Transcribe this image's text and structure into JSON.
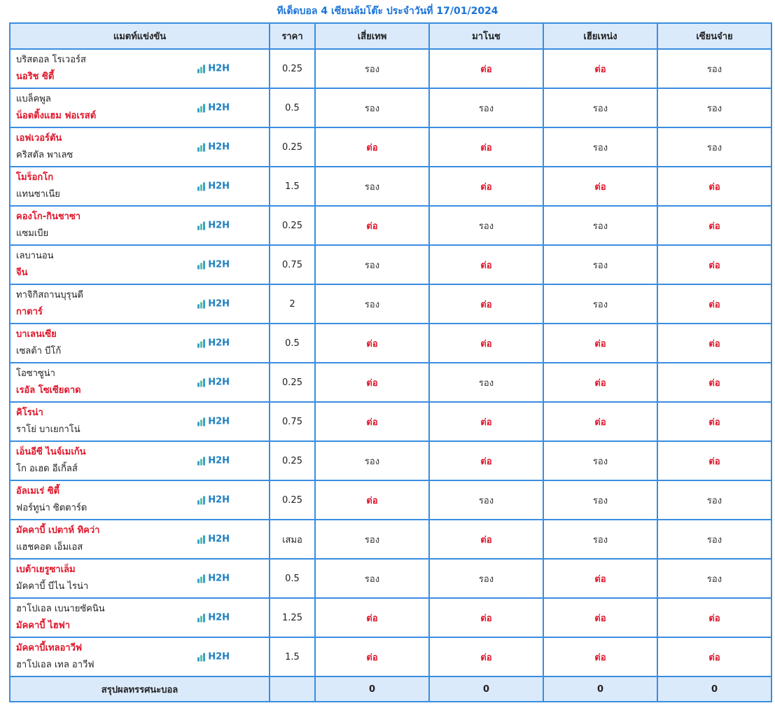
{
  "title": "ทีเด็ดบอล 4 เซียนล้มโต๊ะ ประจำวันที่ 17/01/2024",
  "headers": {
    "match": "แมตท์แข่งขัน",
    "price": "ราคา",
    "experts": [
      "เสี่ยเทพ",
      "มาโนช",
      "เฮียเหน่ง",
      "เซียนจ๋าย"
    ]
  },
  "h2h_label": "H2H",
  "colors": {
    "favorite": "#e0162b",
    "accent": "#1a73d9",
    "border": "#3a8de0",
    "header_bg": "#dbeafb"
  },
  "matches": [
    {
      "team1": "บริสตอล โรเวอร์ส",
      "team1_fav": false,
      "team2": "นอริช ซิตี้",
      "team2_fav": true,
      "price": "0.25",
      "picks": [
        "รอง",
        "ต่อ",
        "ต่อ",
        "รอง"
      ]
    },
    {
      "team1": "แบล็คพูล",
      "team1_fav": false,
      "team2": "น็อตติ้งแฮม ฟอเรสต์",
      "team2_fav": true,
      "price": "0.5",
      "picks": [
        "รอง",
        "รอง",
        "รอง",
        "รอง"
      ]
    },
    {
      "team1": "เอฟเวอร์ตัน",
      "team1_fav": true,
      "team2": "คริสตัล พาเลซ",
      "team2_fav": false,
      "price": "0.25",
      "picks": [
        "ต่อ",
        "ต่อ",
        "รอง",
        "รอง"
      ]
    },
    {
      "team1": "โมร็อกโก",
      "team1_fav": true,
      "team2": "แทนซาเนีย",
      "team2_fav": false,
      "price": "1.5",
      "picks": [
        "รอง",
        "ต่อ",
        "ต่อ",
        "ต่อ"
      ]
    },
    {
      "team1": "คองโก-กินชาซา",
      "team1_fav": true,
      "team2": "แซมเบีย",
      "team2_fav": false,
      "price": "0.25",
      "picks": [
        "ต่อ",
        "รอง",
        "รอง",
        "ต่อ"
      ]
    },
    {
      "team1": "เลบานอน",
      "team1_fav": false,
      "team2": "จีน",
      "team2_fav": true,
      "price": "0.75",
      "picks": [
        "รอง",
        "ต่อ",
        "รอง",
        "ต่อ"
      ]
    },
    {
      "team1": "ทาจิกิสถานบุรุนดี",
      "team1_fav": false,
      "team2": "กาตาร์",
      "team2_fav": true,
      "price": "2",
      "picks": [
        "รอง",
        "ต่อ",
        "รอง",
        "ต่อ"
      ]
    },
    {
      "team1": "บาเลนเซีย",
      "team1_fav": true,
      "team2": "เซลต้า บีโก้",
      "team2_fav": false,
      "price": "0.5",
      "picks": [
        "ต่อ",
        "ต่อ",
        "ต่อ",
        "ต่อ"
      ]
    },
    {
      "team1": "โอซาซูน่า",
      "team1_fav": false,
      "team2": "เรอัล โซเซียดาด",
      "team2_fav": true,
      "price": "0.25",
      "picks": [
        "ต่อ",
        "รอง",
        "ต่อ",
        "ต่อ"
      ]
    },
    {
      "team1": "คิโรน่า",
      "team1_fav": true,
      "team2": "ราโย่ บาเยกาโน่",
      "team2_fav": false,
      "price": "0.75",
      "picks": [
        "ต่อ",
        "ต่อ",
        "ต่อ",
        "ต่อ"
      ]
    },
    {
      "team1": "เอ็นอีซี ไนจ์เมเก้น",
      "team1_fav": true,
      "team2": "โก อเฮด อีเกิ้ลส์",
      "team2_fav": false,
      "price": "0.25",
      "picks": [
        "รอง",
        "ต่อ",
        "รอง",
        "ต่อ"
      ]
    },
    {
      "team1": "อัลเมเร่ ซิตี้",
      "team1_fav": true,
      "team2": "ฟอร์ทูน่า ซิตตาร์ด",
      "team2_fav": false,
      "price": "0.25",
      "picks": [
        "ต่อ",
        "รอง",
        "รอง",
        "รอง"
      ]
    },
    {
      "team1": "มัคคาบี้ เปตาห์ ทิคว่า",
      "team1_fav": true,
      "team2": "แฮชคอด เอ็มเอส",
      "team2_fav": false,
      "price": "เสมอ",
      "picks": [
        "รอง",
        "ต่อ",
        "รอง",
        "รอง"
      ]
    },
    {
      "team1": "เบต้าเยรูซาเล็ม",
      "team1_fav": true,
      "team2": "มัคคาบี้ บีไน ไรน่า",
      "team2_fav": false,
      "price": "0.5",
      "picks": [
        "รอง",
        "รอง",
        "ต่อ",
        "รอง"
      ]
    },
    {
      "team1": "ฮาโปเอล เบนายซัคนิน",
      "team1_fav": false,
      "team2": "มัคคาบี้ ไฮฟา",
      "team2_fav": true,
      "price": "1.25",
      "picks": [
        "ต่อ",
        "ต่อ",
        "ต่อ",
        "ต่อ"
      ]
    },
    {
      "team1": "มัคคาบี้เทลอาวีฟ",
      "team1_fav": true,
      "team2": "ฮาโปเอล เทล อาวีฟ",
      "team2_fav": false,
      "price": "1.5",
      "picks": [
        "ต่อ",
        "ต่อ",
        "ต่อ",
        "ต่อ"
      ]
    }
  ],
  "summary": {
    "label": "สรุปผลทรรศนะบอล",
    "price": "",
    "scores": [
      "0",
      "0",
      "0",
      "0"
    ]
  }
}
